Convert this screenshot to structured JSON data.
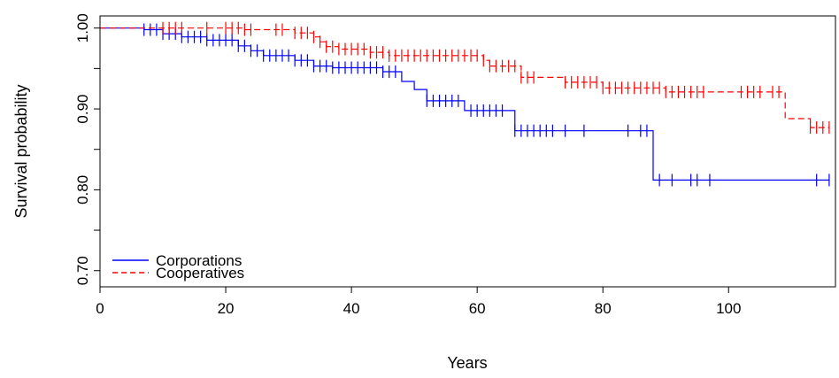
{
  "chart_data": {
    "type": "line",
    "step": true,
    "xlabel": "Years",
    "ylabel": "Survival probability",
    "xlim": [
      0,
      117
    ],
    "ylim": [
      0.68,
      1.015
    ],
    "x_ticks": [
      0,
      20,
      40,
      60,
      80,
      100
    ],
    "y_ticks": [
      0.7,
      0.75,
      0.8,
      0.85,
      0.9,
      0.95,
      1.0
    ],
    "y_tick_labels": [
      "0.70",
      "",
      "0.80",
      "",
      "0.90",
      "",
      "1.00"
    ],
    "grid": false,
    "legend_position": "bottom-left",
    "series": [
      {
        "name": "Corporations",
        "color": "#0000ff",
        "line_style": "solid",
        "steps": [
          [
            0,
            1.0
          ],
          [
            7,
            0.998
          ],
          [
            10,
            0.993
          ],
          [
            13,
            0.989
          ],
          [
            17,
            0.985
          ],
          [
            22,
            0.978
          ],
          [
            24,
            0.972
          ],
          [
            26,
            0.966
          ],
          [
            31,
            0.96
          ],
          [
            34,
            0.953
          ],
          [
            37,
            0.951
          ],
          [
            45,
            0.946
          ],
          [
            48,
            0.934
          ],
          [
            50,
            0.924
          ],
          [
            52,
            0.91
          ],
          [
            58,
            0.898
          ],
          [
            65,
            0.898
          ],
          [
            66,
            0.873
          ],
          [
            88,
            0.873
          ],
          [
            88,
            0.812
          ],
          [
            116,
            0.812
          ]
        ],
        "censor_times": [
          7,
          8,
          9,
          10,
          11,
          12,
          13,
          14,
          15,
          16,
          17,
          18,
          19,
          20,
          21,
          22,
          23,
          24,
          25,
          26,
          27,
          28,
          29,
          30,
          31,
          32,
          33,
          34,
          35,
          36,
          37,
          38,
          39,
          40,
          41,
          42,
          43,
          44,
          45,
          46,
          47,
          52,
          53,
          54,
          55,
          56,
          57,
          59,
          60,
          61,
          62,
          63,
          64,
          66,
          67,
          68,
          69,
          70,
          71,
          72,
          74,
          77,
          84,
          86,
          87,
          89,
          91,
          94,
          95,
          97,
          114,
          116
        ]
      },
      {
        "name": "Cooperatives",
        "color": "#ff0000",
        "line_style": "dashed",
        "steps": [
          [
            0,
            1.0
          ],
          [
            23,
            0.998
          ],
          [
            31,
            0.994
          ],
          [
            34,
            0.989
          ],
          [
            35,
            0.983
          ],
          [
            36,
            0.977
          ],
          [
            38,
            0.974
          ],
          [
            43,
            0.97
          ],
          [
            46,
            0.966
          ],
          [
            51,
            0.966
          ],
          [
            61,
            0.96
          ],
          [
            62,
            0.953
          ],
          [
            67,
            0.945
          ],
          [
            67,
            0.939
          ],
          [
            73,
            0.939
          ],
          [
            74,
            0.933
          ],
          [
            80,
            0.926
          ],
          [
            90,
            0.921
          ],
          [
            109,
            0.921
          ],
          [
            109,
            0.888
          ],
          [
            113,
            0.877
          ],
          [
            116,
            0.877
          ]
        ],
        "censor_times": [
          10,
          11,
          12,
          13,
          17,
          20,
          21,
          22,
          23,
          24,
          28,
          29,
          31,
          32,
          33,
          34,
          35,
          36,
          37,
          38,
          39,
          40,
          41,
          42,
          43,
          44,
          45,
          46,
          47,
          48,
          49,
          50,
          51,
          52,
          53,
          54,
          55,
          56,
          57,
          58,
          59,
          60,
          61,
          62,
          63,
          64,
          65,
          66,
          67,
          68,
          69,
          74,
          75,
          76,
          77,
          78,
          79,
          80,
          81,
          82,
          83,
          84,
          85,
          86,
          87,
          88,
          89,
          90,
          91,
          92,
          93,
          94,
          95,
          96,
          102,
          103,
          104,
          105,
          107,
          108,
          113,
          114,
          115,
          116
        ]
      }
    ]
  }
}
